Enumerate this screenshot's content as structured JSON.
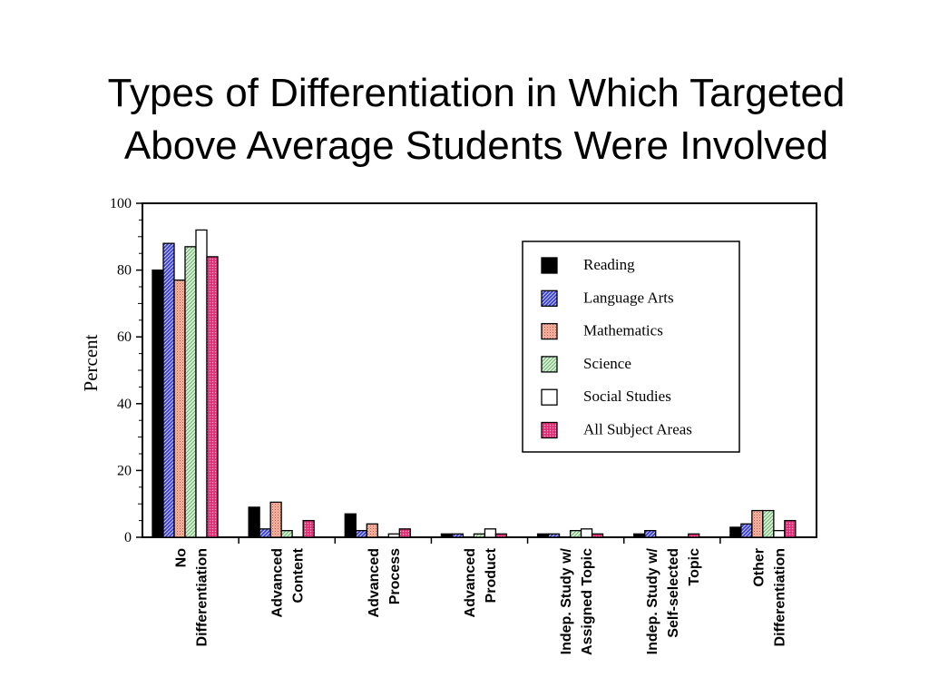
{
  "chart_data": {
    "type": "bar",
    "title_lines": [
      "Types of Differentiation in Which Targeted",
      "Above Average Students Were Involved"
    ],
    "ylabel": "Percent",
    "xlabel": "",
    "ylim": [
      0,
      100
    ],
    "yticks": [
      0,
      20,
      40,
      60,
      80,
      100
    ],
    "grid": false,
    "legend_position": "top-right",
    "categories": [
      [
        "No",
        "Differentiation"
      ],
      [
        "Advanced",
        "Content"
      ],
      [
        "Advanced",
        "Process"
      ],
      [
        "Advanced",
        "Product"
      ],
      [
        "Indep. Study w/",
        "Assigned Topic"
      ],
      [
        "Indep. Study w/",
        "Self-selected",
        "Topic"
      ],
      [
        "Other",
        "Differentiation"
      ]
    ],
    "series": [
      {
        "name": "Reading",
        "color": "#000000",
        "pattern": "solid",
        "values": [
          80,
          9,
          7,
          1,
          1,
          1,
          3
        ]
      },
      {
        "name": "Language Arts",
        "color": "#3a3ad6",
        "pattern": "hatch",
        "values": [
          88,
          2.5,
          2,
          1,
          1,
          2,
          4
        ]
      },
      {
        "name": "Mathematics",
        "color": "#f4a08a",
        "pattern": "dots",
        "values": [
          77,
          10.5,
          4,
          0,
          0,
          0,
          8
        ]
      },
      {
        "name": "Science",
        "color": "#bfe6bf",
        "pattern": "hatch",
        "values": [
          87,
          2,
          0,
          1,
          2,
          0,
          8
        ]
      },
      {
        "name": "Social Studies",
        "color": "#ffffff",
        "pattern": "solid",
        "values": [
          92,
          0,
          1,
          2.5,
          2.5,
          0,
          2
        ]
      },
      {
        "name": "All Subject Areas",
        "color": "#e8357a",
        "pattern": "dots",
        "values": [
          84,
          5,
          2.5,
          1,
          1,
          1,
          5
        ]
      }
    ]
  }
}
